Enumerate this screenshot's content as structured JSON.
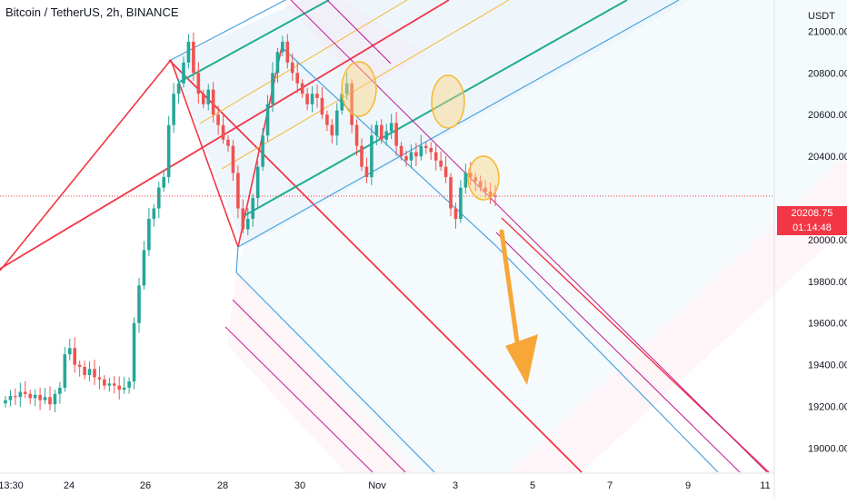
{
  "header": {
    "symbol_title": "Bitcoin / TetherUS, 2h, BINANCE"
  },
  "price_axis": {
    "currency": "USDT",
    "ticks": [
      "21000.00",
      "20800.00",
      "20600.00",
      "20400.00",
      "20000.00",
      "19800.00",
      "19600.00",
      "19400.00",
      "19200.00",
      "19000.00"
    ]
  },
  "time_axis": {
    "labels": [
      "13:30",
      "24",
      "26",
      "28",
      "30",
      "Nov",
      "3",
      "5",
      "7",
      "9",
      "11"
    ]
  },
  "last_price": {
    "value": "20208.75",
    "countdown": "01:14:48",
    "color": "#f23645"
  },
  "colors": {
    "up": "#26a69a",
    "down": "#ef5350",
    "median_line": "#f23645",
    "pitchfork_blue": "#4aa3df",
    "pitchfork_green": "#1fae8c",
    "pitchfork_orange": "#f7b731",
    "pitchfork_magenta": "#c2188f",
    "arrow": "#f7a738"
  },
  "chart_data": {
    "type": "candlestick",
    "title": "Bitcoin / TetherUS, 2h, BINANCE",
    "ylabel": "USDT",
    "ylim": [
      18880,
      21150
    ],
    "x_labels": [
      "13:30",
      "24",
      "26",
      "28",
      "30",
      "Nov",
      "3",
      "5",
      "7",
      "9",
      "11"
    ],
    "last_price": 20208.75,
    "close_series": [
      19230,
      19250,
      19245,
      19270,
      19260,
      19240,
      19255,
      19230,
      19245,
      19210,
      19260,
      19290,
      19450,
      19480,
      19400,
      19390,
      19350,
      19380,
      19340,
      19330,
      19300,
      19310,
      19300,
      19280,
      19290,
      19320,
      19600,
      19780,
      19950,
      20100,
      20150,
      20250,
      20300,
      20550,
      20700,
      20750,
      20850,
      20950,
      20800,
      20700,
      20650,
      20720,
      20600,
      20550,
      20480,
      20450,
      20320,
      20150,
      20050,
      20100,
      20200,
      20350,
      20500,
      20650,
      20800,
      20900,
      20950,
      20850,
      20800,
      20750,
      20700,
      20650,
      20700,
      20680,
      20600,
      20550,
      20500,
      20620,
      20700,
      20750,
      20550,
      20450,
      20350,
      20300,
      20500,
      20550,
      20480,
      20520,
      20560,
      20450,
      20400,
      20380,
      20420,
      20400,
      20450,
      20440,
      20420,
      20380,
      20350,
      20300,
      20150,
      20100,
      20250,
      20320,
      20300,
      20280,
      20250,
      20230,
      20210,
      20208.75
    ]
  }
}
